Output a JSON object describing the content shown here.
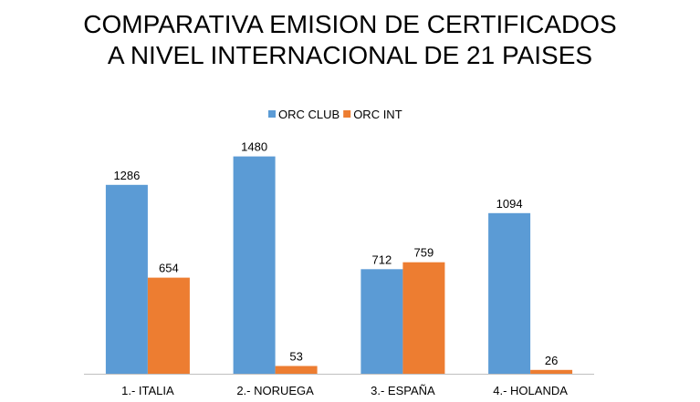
{
  "chart_data": {
    "type": "bar",
    "title_lines": [
      "COMPARATIVA EMISION DE CERTIFICADOS",
      "A NIVEL INTERNACIONAL DE 21 PAISES"
    ],
    "categories": [
      "1.- ITALIA",
      "2.- NORUEGA",
      "3.- ESPAÑA",
      "4.- HOLANDA"
    ],
    "series": [
      {
        "name": "ORC CLUB",
        "color": "#5B9BD5",
        "values": [
          1286,
          1480,
          712,
          1094
        ]
      },
      {
        "name": "ORC INT",
        "color": "#ED7D31",
        "values": [
          654,
          53,
          759,
          26
        ]
      }
    ],
    "xlabel": "",
    "ylabel": "",
    "ylim": [
      0,
      1500
    ],
    "grid": false,
    "legend_position": "top-center",
    "data_labels": true
  }
}
